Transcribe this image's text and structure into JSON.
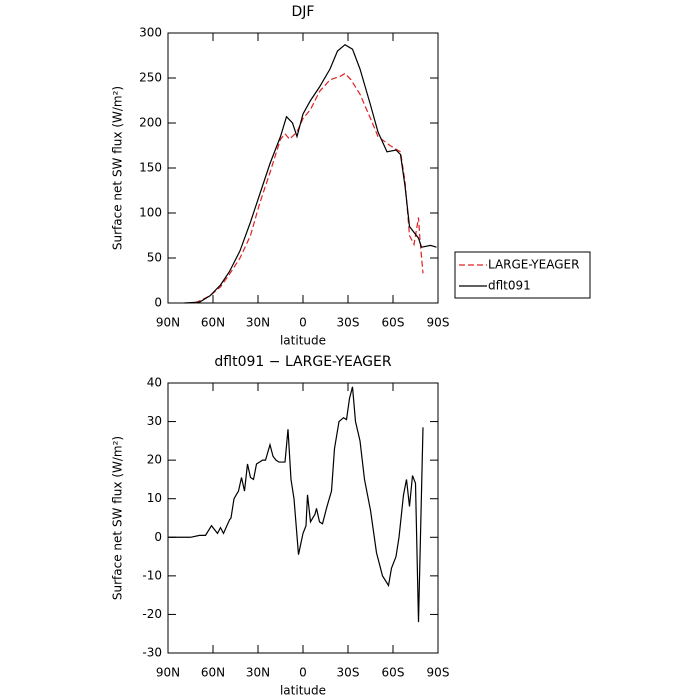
{
  "chart_data": [
    {
      "type": "line",
      "title": "DJF",
      "xlabel": "latitude",
      "ylabel": "Surface net SW flux (W/m²)",
      "xlim": [
        90,
        -90
      ],
      "ylim": [
        0,
        300
      ],
      "xticks": [
        {
          "value": 90,
          "label": "90N"
        },
        {
          "value": 60,
          "label": "60N"
        },
        {
          "value": 30,
          "label": "30N"
        },
        0,
        {
          "value": -30,
          "label": "30S"
        },
        {
          "value": -60,
          "label": "60S"
        },
        {
          "value": -90,
          "label": "90S"
        }
      ],
      "yticks": [
        0,
        50,
        100,
        150,
        200,
        250,
        300
      ],
      "legend": "outside-right",
      "series": [
        {
          "name": "LARGE-YEAGER",
          "color": "#e02020",
          "style": "dashed",
          "x": [
            72,
            62,
            55,
            49,
            42,
            35,
            29,
            22,
            15,
            12,
            9,
            4,
            0,
            -5,
            -11,
            -18,
            -25,
            -28,
            -32,
            -38,
            -45,
            -50,
            -58,
            -65,
            -68,
            -71,
            -74,
            -77,
            -78,
            -80
          ],
          "values": [
            0,
            8,
            18,
            32,
            50,
            75,
            110,
            145,
            182,
            188,
            182,
            190,
            205,
            215,
            235,
            248,
            252,
            255,
            248,
            232,
            205,
            185,
            175,
            168,
            135,
            75,
            65,
            95,
            70,
            33
          ]
        },
        {
          "name": "dflt091",
          "color": "#000000",
          "style": "solid",
          "x": [
            79,
            69,
            62,
            55,
            49,
            42,
            35,
            29,
            22,
            15,
            11,
            7,
            4,
            0,
            -5,
            -11,
            -18,
            -23,
            -28,
            -33,
            -38,
            -45,
            -50,
            -56,
            -62,
            -65,
            -68,
            -71,
            -77,
            -79,
            -85,
            -89
          ],
          "values": [
            0,
            1,
            8,
            20,
            35,
            58,
            90,
            120,
            155,
            185,
            207,
            200,
            185,
            210,
            225,
            240,
            260,
            280,
            287,
            282,
            260,
            220,
            190,
            168,
            170,
            165,
            130,
            85,
            72,
            62,
            64,
            62
          ]
        }
      ]
    },
    {
      "type": "line",
      "title": "dflt091 − LARGE-YEAGER",
      "xlabel": "latitude",
      "ylabel": "Surface net SW flux (W/m²)",
      "xlim": [
        90,
        -90
      ],
      "ylim": [
        -30,
        40
      ],
      "xticks": [
        {
          "value": 90,
          "label": "90N"
        },
        {
          "value": 60,
          "label": "60N"
        },
        {
          "value": 30,
          "label": "30N"
        },
        0,
        {
          "value": -30,
          "label": "30S"
        },
        {
          "value": -60,
          "label": "60S"
        },
        {
          "value": -90,
          "label": "90S"
        }
      ],
      "yticks": [
        -30,
        -20,
        -10,
        0,
        10,
        20,
        30,
        40
      ],
      "series": [
        {
          "color": "#000000",
          "style": "solid",
          "x": [
            90,
            75,
            69,
            65,
            61,
            57,
            55,
            53,
            49,
            48,
            46,
            43,
            41,
            39,
            37,
            35,
            33,
            31,
            29,
            27,
            25,
            22,
            20,
            18,
            16,
            12,
            10,
            8,
            6,
            3,
            0,
            -2,
            -3,
            -5,
            -8,
            -9,
            -11,
            -13,
            -16,
            -19,
            -21,
            -24,
            -27,
            -29,
            -31,
            -33,
            -35,
            -38,
            -41,
            -45,
            -49,
            -53,
            -57,
            -59,
            -62,
            -64,
            -67,
            -69,
            -71,
            -73,
            -75,
            -77,
            -80
          ],
          "values": [
            0,
            0,
            0.5,
            0.5,
            3,
            1,
            2.5,
            1,
            4.5,
            5,
            10,
            12,
            15.5,
            12,
            19,
            15.5,
            15,
            19,
            19.5,
            20,
            20,
            24,
            21,
            20,
            19.5,
            19.5,
            28,
            15,
            10,
            -4.5,
            1,
            3,
            11,
            4,
            6,
            7.5,
            4,
            3.5,
            8,
            12,
            23,
            30,
            31,
            30.5,
            36,
            39,
            30,
            25,
            15,
            7,
            -4,
            -10,
            -12.5,
            -8,
            -5,
            0,
            11,
            15,
            8,
            16,
            14,
            -22,
            28.5
          ]
        }
      ]
    }
  ]
}
